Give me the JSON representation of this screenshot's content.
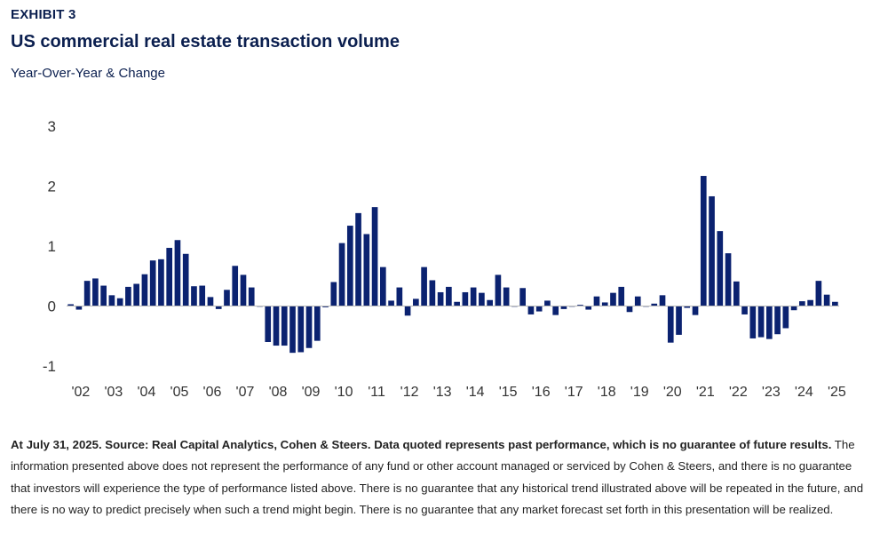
{
  "header": {
    "exhibit_label": "EXHIBIT 3",
    "title": "US commercial real estate transaction volume",
    "subtitle": "Year-Over-Year & Change"
  },
  "footnote": {
    "lead": "At July 31, 2025. Source: Real Capital Analytics, Cohen & Steers. Data quoted represents past performance, which is no guarantee of future results.",
    "body": " The information presented above does not represent the performance of any fund or other account managed or serviced by Cohen & Steers, and there is no guarantee that investors will experience the type of performance listed above. There is no guarantee that any historical trend illustrated above will be repeated in the future, and there is no way to predict precisely when such a trend might begin. There is no guarantee that any market forecast set forth in this presentation will be realized."
  },
  "colors": {
    "bar": "#0b2270",
    "title": "#0b1f4f"
  },
  "chart_data": {
    "type": "bar",
    "title": "US commercial real estate transaction volume",
    "subtitle": "Year-Over-Year & Change",
    "ylim": [
      -1,
      3
    ],
    "yticks": [
      3,
      2,
      1,
      0,
      -1
    ],
    "xticks": [
      "'02",
      "'03",
      "'04",
      "'05",
      "'06",
      "'07",
      "'08",
      "'09",
      "'10",
      "'11",
      "'12",
      "'13",
      "'14",
      "'15",
      "'16",
      "'17",
      "'18",
      "'19",
      "'20",
      "'21",
      "'22",
      "'23",
      "'24",
      "'25"
    ],
    "grid": false,
    "legend": "none",
    "frequency": "quarterly",
    "values": [
      0.03,
      -0.06,
      0.42,
      0.46,
      0.34,
      0.18,
      0.13,
      0.32,
      0.37,
      0.53,
      0.76,
      0.78,
      0.97,
      1.1,
      0.87,
      0.33,
      0.34,
      0.15,
      -0.05,
      0.27,
      0.67,
      0.52,
      0.31,
      0.0,
      -0.6,
      -0.66,
      -0.66,
      -0.78,
      -0.77,
      -0.7,
      -0.58,
      -0.02,
      0.4,
      1.05,
      1.34,
      1.55,
      1.2,
      1.65,
      0.65,
      0.09,
      0.31,
      -0.16,
      0.12,
      0.65,
      0.43,
      0.23,
      0.32,
      0.07,
      0.23,
      0.31,
      0.22,
      0.1,
      0.52,
      0.31,
      0.0,
      0.3,
      -0.14,
      -0.09,
      0.09,
      -0.15,
      -0.05,
      0.0,
      0.02,
      -0.06,
      0.16,
      0.06,
      0.22,
      0.32,
      -0.1,
      0.16,
      0.0,
      0.04,
      0.18,
      -0.61,
      -0.48,
      -0.03,
      -0.15,
      2.17,
      1.83,
      1.25,
      0.88,
      0.41,
      -0.14,
      -0.54,
      -0.52,
      -0.55,
      -0.47,
      -0.37,
      -0.07,
      0.08,
      0.1,
      0.42,
      0.19,
      0.07
    ]
  }
}
